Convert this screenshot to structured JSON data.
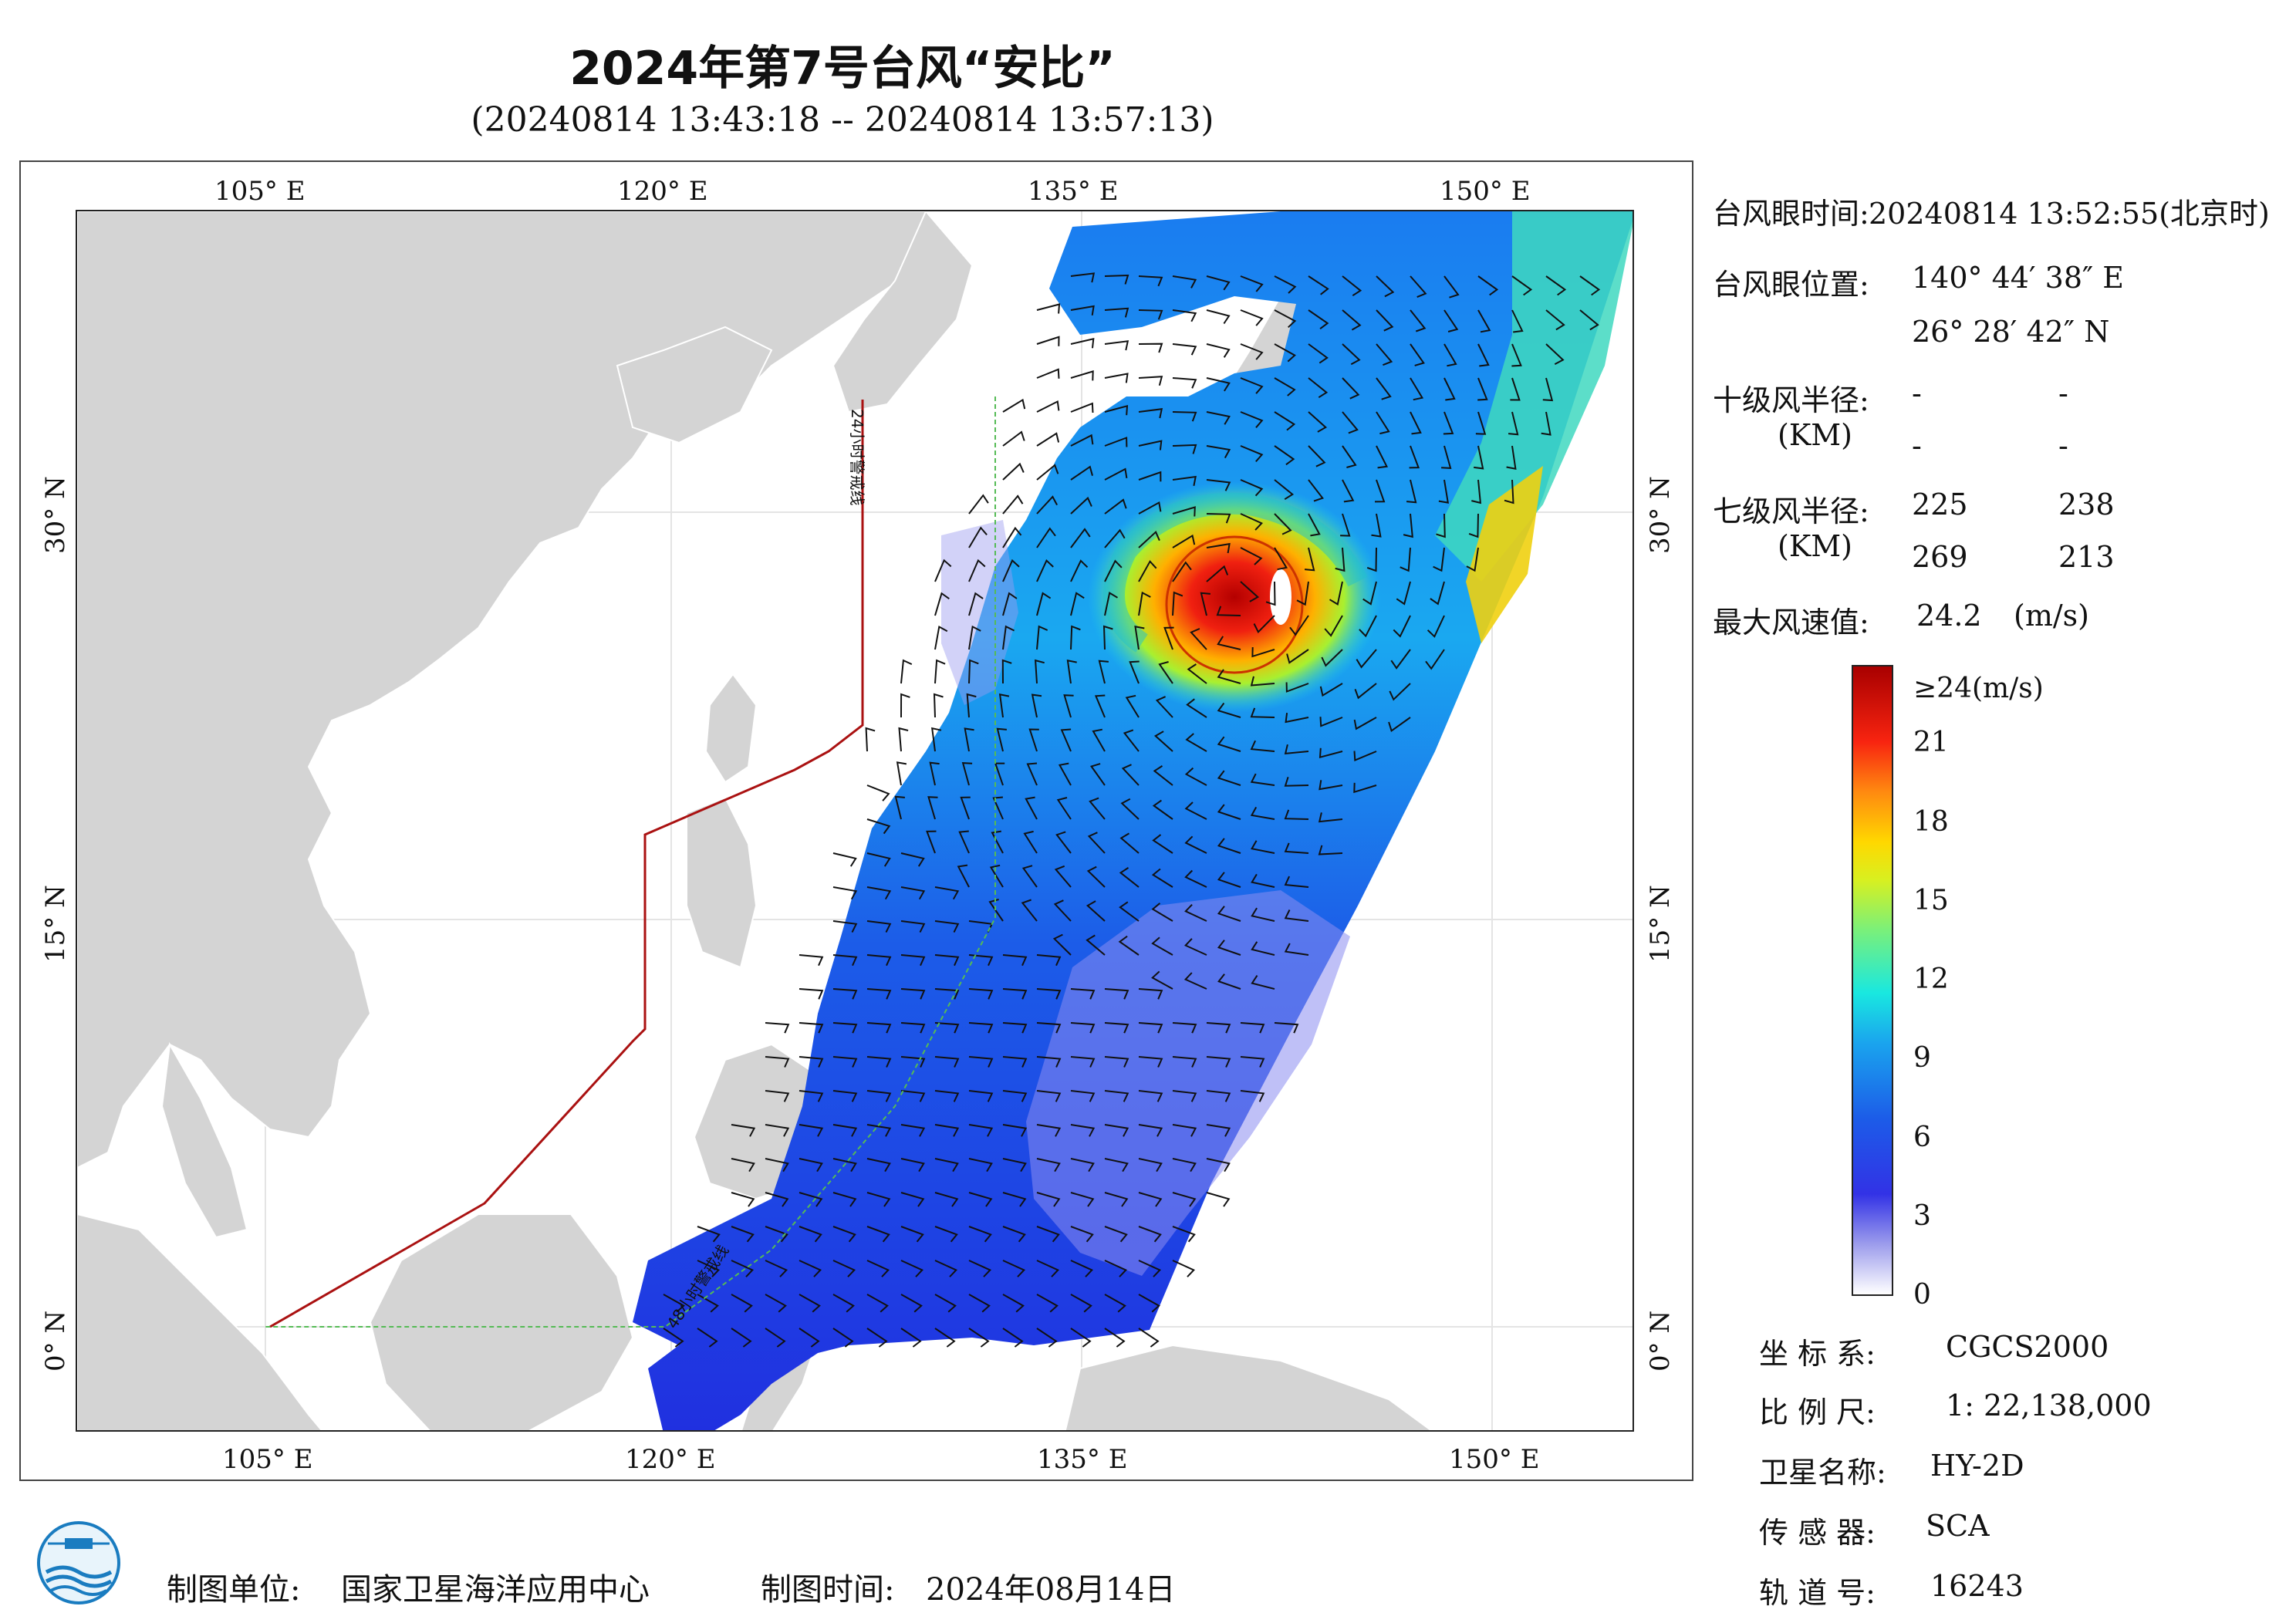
{
  "header": {
    "title": "2024年第7号台风“安比”",
    "subtitle": "(20240814 13:43:18 -- 20240814 13:57:13)"
  },
  "map": {
    "lon_labels": [
      "105° E",
      "120° E",
      "135° E",
      "150° E"
    ],
    "lat_labels": [
      "30° N",
      "15° N",
      "0° N"
    ],
    "warning_line_24h": "24小时警戒线",
    "warning_line_48h": "48小时警戒线",
    "colors": {
      "land": "#d4d4d4",
      "warning_24h": "#aa1111",
      "warning_48h": "#55bb55",
      "grid": "#e8e8e8"
    }
  },
  "typhoon_info": {
    "eye_time_label": "台风眼时间:",
    "eye_time_value": "20240814 13:52:55(北京时)",
    "eye_pos_label": "台风眼位置:",
    "eye_lon": "140° 44′ 38″ E",
    "eye_lat": "26° 28′ 42″ N",
    "r10_label": "十级风半径:",
    "r10_unit": "(KM)",
    "r10_values": [
      "-",
      "-",
      "-",
      "-"
    ],
    "r7_label": "七级风半径:",
    "r7_unit": "(KM)",
    "r7_values": [
      "225",
      "238",
      "269",
      "213"
    ],
    "max_wind_label": "最大风速值:",
    "max_wind_value": "24.2",
    "max_wind_unit": "(m/s)"
  },
  "colorbar": {
    "ticks": [
      "≥24(m/s)",
      "21",
      "18",
      "15",
      "12",
      "9",
      "6",
      "3",
      "0"
    ],
    "tick_values": [
      24,
      21,
      18,
      15,
      12,
      9,
      6,
      3,
      0
    ]
  },
  "meta": {
    "coord_label": "坐 标 系:",
    "coord_value": "CGCS2000",
    "scale_label": "比 例 尺:",
    "scale_value": "1: 22,138,000",
    "satellite_label": "卫星名称:",
    "satellite_value": "HY-2D",
    "sensor_label": "传 感 器:",
    "sensor_value": "SCA",
    "orbit_label": "轨 道 号:",
    "orbit_value": "16243"
  },
  "footer": {
    "producer_label": "制图单位:",
    "producer_value": "国家卫星海洋应用中心",
    "date_label": "制图时间:",
    "date_value": "2024年08月14日"
  }
}
